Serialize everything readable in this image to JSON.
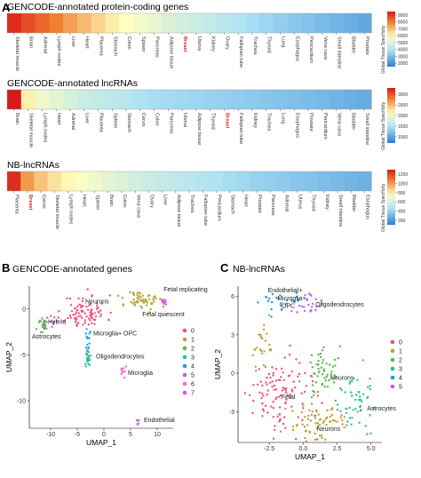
{
  "panels": {
    "A": "A",
    "B": "B",
    "C": "C"
  },
  "colors": {
    "scale_low": "#2c7fd1",
    "scale_mid_low": "#aee3f5",
    "scale_mid": "#ffffbf",
    "scale_high": "#f08030",
    "scale_top": "#d7191c",
    "highlight_label": "#d62728",
    "cluster": [
      "#f0507a",
      "#b8a032",
      "#58b848",
      "#28c0a0",
      "#2898e0",
      "#c060e0",
      "#f070c8",
      "#e050f0"
    ]
  },
  "chart_data": [
    {
      "type": "heatmap",
      "title": "GENCODE-annotated protein-coding genes",
      "colorbar_label": "Global Tissue Specificity",
      "colorbar_ticks": [
        "2000",
        "3000",
        "4000",
        "5000",
        "6000",
        "7000",
        "8000",
        "9000"
      ],
      "colorbar_range": [
        1500,
        9500
      ],
      "highlight": "Breast",
      "tissues": [
        "Skeletal muscle",
        "Brain",
        "Adrenal",
        "Lymph nodes",
        "Liver",
        "Heart",
        "Placenta",
        "Stomach",
        "Colon",
        "Spleen",
        "Pancreas",
        "Adipose tissue",
        "Breast",
        "Uterus",
        "Kidney",
        "Ovary",
        "Fallopian tube",
        "Trachea",
        "Thyroid",
        "Lung",
        "Esophagus",
        "Pericardium",
        "Vena cava",
        "Small intestine",
        "Bladder",
        "Prostate"
      ],
      "values": [
        9200,
        8700,
        8300,
        7900,
        7400,
        7000,
        6600,
        6200,
        5900,
        5600,
        5300,
        5000,
        4800,
        4600,
        4400,
        4200,
        4000,
        3800,
        3600,
        3400,
        3250,
        3100,
        2950,
        2800,
        2650,
        2500
      ]
    },
    {
      "type": "heatmap",
      "title": "GENCODE-annotated lncRNAs",
      "colorbar_label": "Global Tissue Specificity",
      "colorbar_ticks": [
        "1000",
        "1500",
        "2000",
        "2500",
        "3000"
      ],
      "colorbar_range": [
        700,
        3300
      ],
      "highlight": "Breast",
      "tissues": [
        "Brain",
        "Skeletal muscle",
        "Lymph nodes",
        "Heart",
        "Adrenal",
        "Liver",
        "Placenta",
        "Spleen",
        "Stomach",
        "Cervix",
        "Colon",
        "Pancreas",
        "Uterus",
        "Adipose tissue",
        "Thyroid",
        "Breast",
        "Fallopian tube",
        "Kidney",
        "Trachea",
        "Lung",
        "Esophagus",
        "Prostate",
        "Pericardium",
        "Vena cava",
        "Bladder",
        "Small intestine"
      ],
      "values": [
        3300,
        2200,
        2000,
        1900,
        1800,
        1700,
        1650,
        1600,
        1550,
        1500,
        1450,
        1420,
        1400,
        1380,
        1350,
        1330,
        1300,
        1280,
        1250,
        1220,
        1200,
        1180,
        1150,
        1120,
        1080,
        1050
      ]
    },
    {
      "type": "heatmap",
      "title": "NB-lncRNAs",
      "colorbar_label": "Global Tissue Specificity",
      "colorbar_ticks": [
        "200",
        "400",
        "600",
        "800",
        "1000",
        "1200"
      ],
      "colorbar_range": [
        100,
        1300
      ],
      "highlight": "Breast",
      "tissues": [
        "Placenta",
        "Breast",
        "Cervix",
        "Skeletal muscle",
        "Lymph nodes",
        "Heart",
        "Spleen",
        "Brain",
        "Colon",
        "Vena cava",
        "Ovary",
        "Liver",
        "Adipose tissue",
        "Trachea",
        "Fallopian tube",
        "Pericardium",
        "Stomach",
        "Heart",
        "Prostate",
        "Pancreas",
        "Adrenal",
        "Uterus",
        "Thyroid",
        "Kidney",
        "Small intestine",
        "Bladder",
        "Esophagus"
      ],
      "values": [
        1250,
        1000,
        900,
        830,
        780,
        740,
        700,
        660,
        620,
        590,
        560,
        540,
        520,
        500,
        480,
        460,
        440,
        420,
        400,
        385,
        370,
        355,
        340,
        325,
        310,
        295,
        280
      ]
    },
    {
      "type": "scatter",
      "title": "GENCODE-annotated genes",
      "xlabel": "UMAP_1",
      "ylabel": "UMAP_2",
      "xlim": [
        -14,
        13
      ],
      "ylim": [
        -13,
        2.5
      ],
      "xticks": [
        "-10",
        "-5",
        "0",
        "5",
        "10"
      ],
      "yticks": [
        "0",
        "-5",
        "-10"
      ],
      "legend": [
        "0",
        "1",
        "2",
        "3",
        "4",
        "5",
        "6",
        "7"
      ],
      "cluster_labels": [
        {
          "text": "Neurons",
          "x": -3.5,
          "y": 0.6
        },
        {
          "text": "Fetal replicating",
          "x": 11.2,
          "y": 1.9
        },
        {
          "text": "Fetal quiescent",
          "x": 7.2,
          "y": -0.8
        },
        {
          "text": "Hybrid",
          "x": -10.5,
          "y": -1.6
        },
        {
          "text": "Astrocytes",
          "x": -13.5,
          "y": -3.2
        },
        {
          "text": "Microglia+ OPC",
          "x": -2.0,
          "y": -2.9
        },
        {
          "text": "Oligodendrocytes",
          "x": -1.5,
          "y": -5.4
        },
        {
          "text": "Microglia",
          "x": 4.5,
          "y": -7.2
        },
        {
          "text": "Endothelial",
          "x": 7.5,
          "y": -12.3
        }
      ],
      "clusters": [
        {
          "id": "0",
          "cx": -3.5,
          "cy": -0.3,
          "sx": 2.0,
          "sy": 0.9,
          "n": 90
        },
        {
          "id": "1",
          "cx": 7.2,
          "cy": 0.9,
          "sx": 1.6,
          "sy": 0.6,
          "n": 55
        },
        {
          "id": "2",
          "cx": -11.3,
          "cy": -1.7,
          "sx": 0.5,
          "sy": 0.5,
          "n": 20
        },
        {
          "id": "3",
          "cx": -3.0,
          "cy": -5.0,
          "sx": 0.3,
          "sy": 0.6,
          "n": 28
        },
        {
          "id": "4",
          "cx": -3.0,
          "cy": -3.0,
          "sx": 0.3,
          "sy": 0.5,
          "n": 12
        },
        {
          "id": "5",
          "cx": -10.0,
          "cy": -1.5,
          "sx": 1.0,
          "sy": 0.4,
          "n": 12
        },
        {
          "id": "6",
          "cx": 3.5,
          "cy": -6.8,
          "sx": 0.3,
          "sy": 0.3,
          "n": 10
        },
        {
          "id": "7",
          "cx": 11.2,
          "cy": 0.7,
          "sx": 0.3,
          "sy": 0.2,
          "n": 10
        },
        {
          "id": "5",
          "cx": 6.3,
          "cy": -12.4,
          "sx": 0.2,
          "sy": 0.2,
          "n": 6
        }
      ]
    },
    {
      "type": "scatter",
      "title": "NB-lncRNAs",
      "xlabel": "UMAP_1",
      "ylabel": "UMAP_2",
      "xlim": [
        -4.8,
        5.8
      ],
      "ylim": [
        -5.4,
        6.8
      ],
      "xticks": [
        "-2.5",
        "0.0",
        "2.5",
        "5.0"
      ],
      "yticks": [
        "6",
        "3",
        "0",
        "-3"
      ],
      "legend": [
        "0",
        "1",
        "2",
        "3",
        "4",
        "5"
      ],
      "cluster_labels": [
        {
          "text": "Endothelial+",
          "x": -2.6,
          "y": 6.3
        },
        {
          "text": "Microglia+",
          "x": -1.9,
          "y": 5.7
        },
        {
          "text": "OPC",
          "x": -1.6,
          "y": 5.1
        },
        {
          "text": "Oligodendrocytes",
          "x": 0.9,
          "y": 5.2
        },
        {
          "text": "Neurons",
          "x": 2.0,
          "y": -0.5
        },
        {
          "text": "Fetal",
          "x": -1.6,
          "y": -2.0
        },
        {
          "text": "Astrocytes",
          "x": 4.7,
          "y": -2.9
        },
        {
          "text": "Neurons",
          "x": 1.0,
          "y": -4.5
        }
      ],
      "clusters": [
        {
          "id": "0",
          "cx": -1.8,
          "cy": -1.5,
          "sx": 1.2,
          "sy": 1.4,
          "n": 110
        },
        {
          "id": "1",
          "cx": 0.6,
          "cy": -3.7,
          "sx": 1.3,
          "sy": 0.8,
          "n": 70
        },
        {
          "id": "2",
          "cx": 1.6,
          "cy": 0.0,
          "sx": 0.7,
          "sy": 1.0,
          "n": 55
        },
        {
          "id": "3",
          "cx": 3.9,
          "cy": -2.2,
          "sx": 0.6,
          "sy": 1.0,
          "n": 45
        },
        {
          "id": "4",
          "cx": -1.8,
          "cy": 5.6,
          "sx": 0.8,
          "sy": 0.4,
          "n": 25
        },
        {
          "id": "5",
          "cx": 0.5,
          "cy": 5.3,
          "sx": 0.5,
          "sy": 0.6,
          "n": 25
        },
        {
          "id": "1",
          "cx": -3.0,
          "cy": 2.0,
          "sx": 0.4,
          "sy": 1.2,
          "n": 25
        }
      ]
    }
  ]
}
